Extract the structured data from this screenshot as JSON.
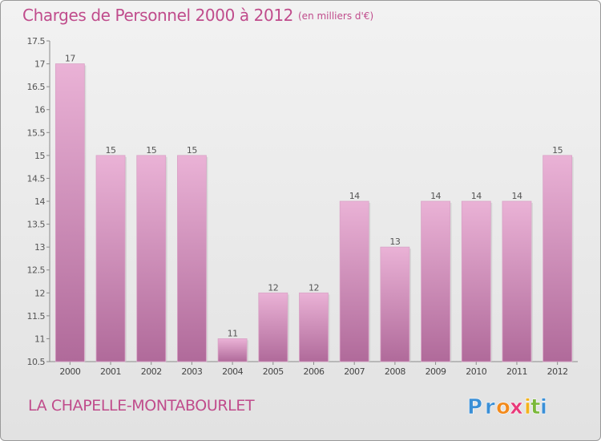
{
  "title": "Charges de Personnel 2000 à 2012",
  "subtitle": "(en milliers d'€)",
  "place": "LA CHAPELLE-MONTABOURLET",
  "logo": {
    "text": "Proxiti",
    "letters": [
      "P",
      "r",
      "o",
      "x",
      "i",
      "t",
      "i"
    ],
    "colors": [
      "#3a8fd6",
      "#3a8fd6",
      "#f28a1c",
      "#e83a7a",
      "#f2b21c",
      "#7ab83a",
      "#3a8fd6"
    ]
  },
  "colors": {
    "bar_top": "#eab2d6",
    "bar_bottom": "#b06a9a",
    "accent": "#c04c8c"
  },
  "chart_data": {
    "type": "bar",
    "categories": [
      "2000",
      "2001",
      "2002",
      "2003",
      "2004",
      "2005",
      "2006",
      "2007",
      "2008",
      "2009",
      "2010",
      "2011",
      "2012"
    ],
    "values": [
      17,
      15,
      15,
      15,
      11,
      12,
      12,
      14,
      13,
      14,
      14,
      14,
      15
    ],
    "data_labels": [
      "17",
      "15",
      "15",
      "15",
      "11",
      "12",
      "12",
      "14",
      "13",
      "14",
      "14",
      "14",
      "15"
    ],
    "ylim": [
      10.5,
      17.5
    ],
    "yticks": [
      "10.5",
      "11",
      "11.5",
      "12",
      "12.5",
      "13",
      "13.5",
      "14",
      "14.5",
      "15",
      "15.5",
      "16",
      "16.5",
      "17",
      "17.5"
    ],
    "grid": false
  }
}
